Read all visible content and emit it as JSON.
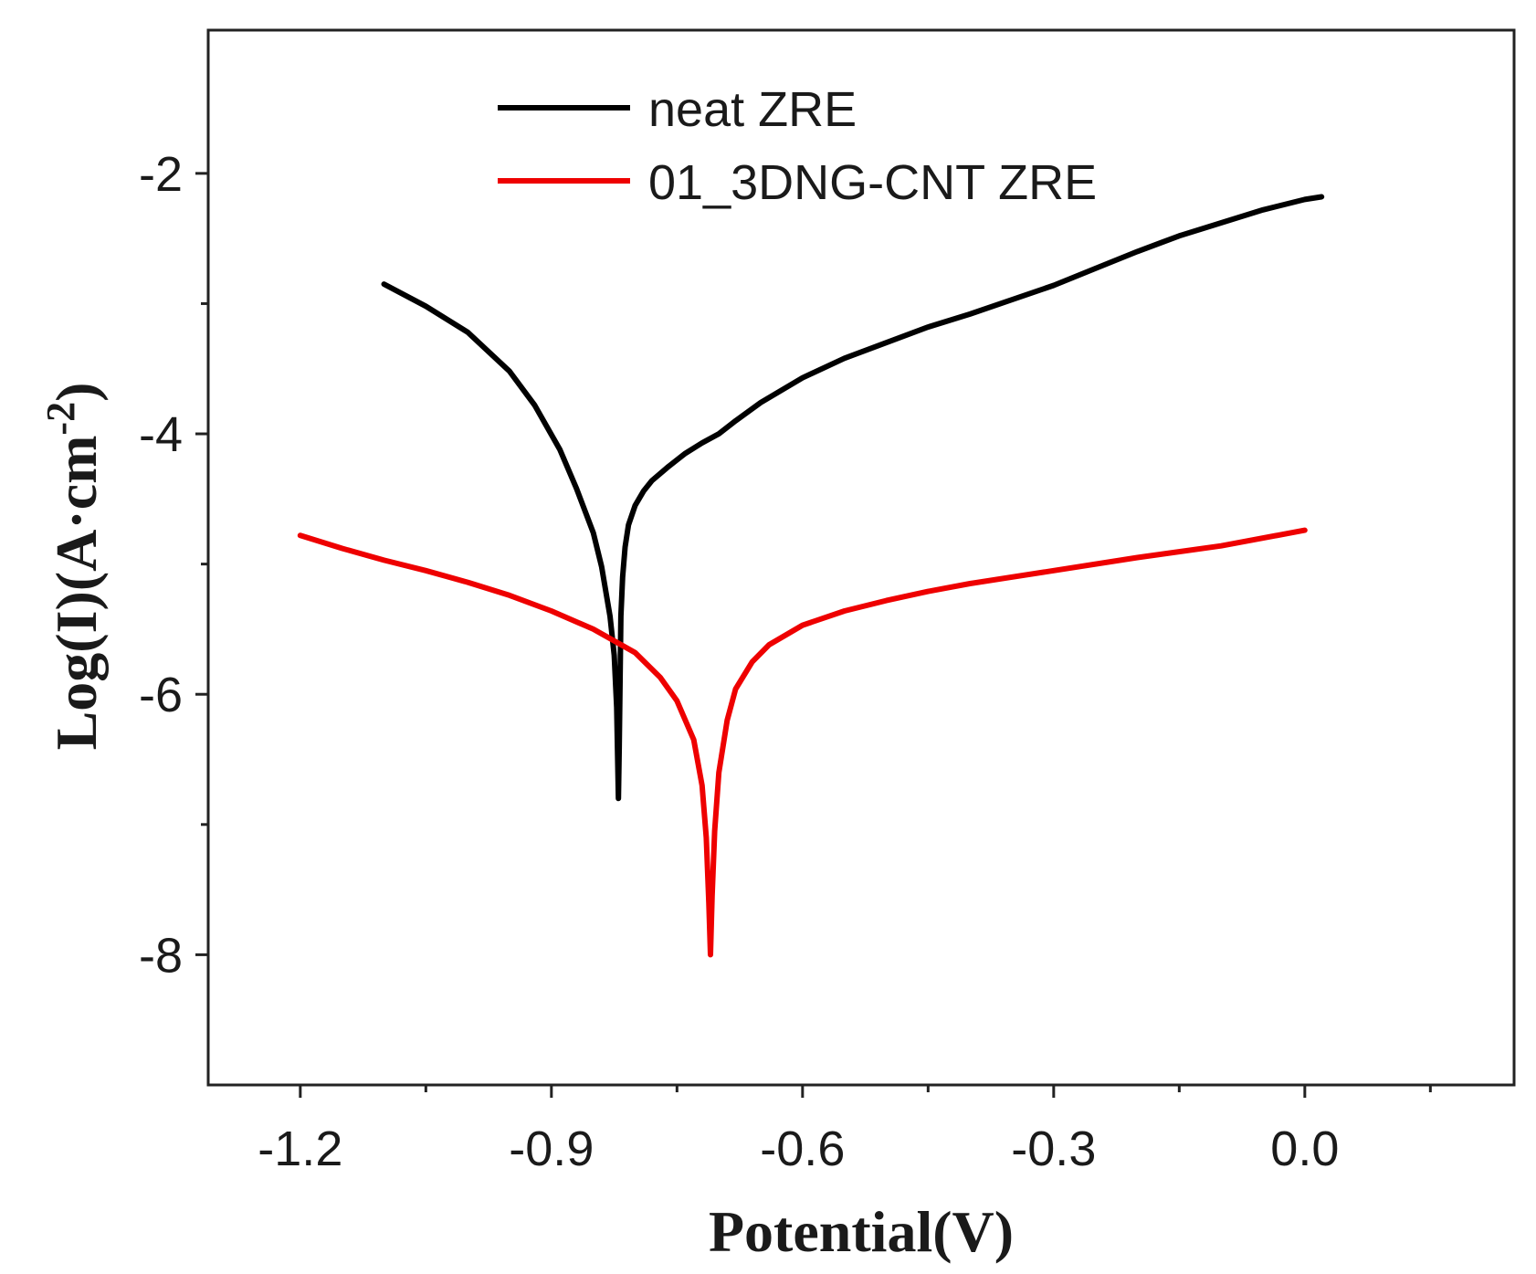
{
  "chart_data": {
    "type": "line",
    "title": "",
    "xlabel": "Potential(V)",
    "ylabel_main": "Log(I)(A·cm",
    "ylabel_exp": "-2",
    "ylabel_close": ")",
    "xlim": [
      -1.31,
      0.25
    ],
    "ylim": [
      -9.0,
      -0.9
    ],
    "x_ticks": [
      -1.2,
      -0.9,
      -0.6,
      -0.3,
      0.0
    ],
    "x_tick_labels": [
      "-1.2",
      "-0.9",
      "-0.6",
      "-0.3",
      "0.0"
    ],
    "x_minor_ticks": [
      -1.05,
      -0.75,
      -0.45,
      -0.15,
      0.15
    ],
    "y_ticks": [
      -2,
      -4,
      -6,
      -8
    ],
    "y_tick_labels": [
      "-2",
      "-4",
      "-6",
      "-8"
    ],
    "y_minor_ticks": [
      -3,
      -5,
      -7
    ],
    "legend_position": "top-center",
    "series": [
      {
        "name": "neat ZRE",
        "color": "#000000",
        "x": [
          -1.1,
          -1.05,
          -1.0,
          -0.95,
          -0.92,
          -0.89,
          -0.87,
          -0.85,
          -0.84,
          -0.83,
          -0.825,
          -0.822,
          -0.82,
          -0.819,
          -0.818,
          -0.817,
          -0.815,
          -0.812,
          -0.808,
          -0.8,
          -0.79,
          -0.78,
          -0.76,
          -0.74,
          -0.72,
          -0.7,
          -0.68,
          -0.65,
          -0.6,
          -0.55,
          -0.5,
          -0.45,
          -0.4,
          -0.35,
          -0.3,
          -0.25,
          -0.2,
          -0.15,
          -0.1,
          -0.05,
          0.0,
          0.02
        ],
        "y": [
          -2.85,
          -3.02,
          -3.22,
          -3.52,
          -3.78,
          -4.12,
          -4.42,
          -4.76,
          -5.02,
          -5.4,
          -5.7,
          -6.1,
          -6.8,
          -6.4,
          -5.9,
          -5.4,
          -5.1,
          -4.87,
          -4.7,
          -4.55,
          -4.44,
          -4.36,
          -4.25,
          -4.15,
          -4.07,
          -4.0,
          -3.9,
          -3.76,
          -3.57,
          -3.42,
          -3.3,
          -3.18,
          -3.08,
          -2.97,
          -2.86,
          -2.73,
          -2.6,
          -2.48,
          -2.38,
          -2.28,
          -2.2,
          -2.18
        ]
      },
      {
        "name": "01_3DNG-CNT ZRE",
        "color": "#ee0000",
        "x": [
          -1.2,
          -1.15,
          -1.1,
          -1.05,
          -1.0,
          -0.95,
          -0.9,
          -0.85,
          -0.8,
          -0.77,
          -0.75,
          -0.73,
          -0.72,
          -0.715,
          -0.712,
          -0.71,
          -0.708,
          -0.705,
          -0.7,
          -0.69,
          -0.68,
          -0.66,
          -0.64,
          -0.6,
          -0.55,
          -0.5,
          -0.45,
          -0.4,
          -0.3,
          -0.2,
          -0.1,
          0.0
        ],
        "y": [
          -4.78,
          -4.88,
          -4.97,
          -5.05,
          -5.14,
          -5.24,
          -5.36,
          -5.5,
          -5.68,
          -5.87,
          -6.05,
          -6.35,
          -6.7,
          -7.1,
          -7.6,
          -8.0,
          -7.55,
          -7.05,
          -6.6,
          -6.2,
          -5.96,
          -5.75,
          -5.62,
          -5.47,
          -5.36,
          -5.28,
          -5.21,
          -5.15,
          -5.05,
          -4.95,
          -4.86,
          -4.74
        ]
      }
    ]
  }
}
